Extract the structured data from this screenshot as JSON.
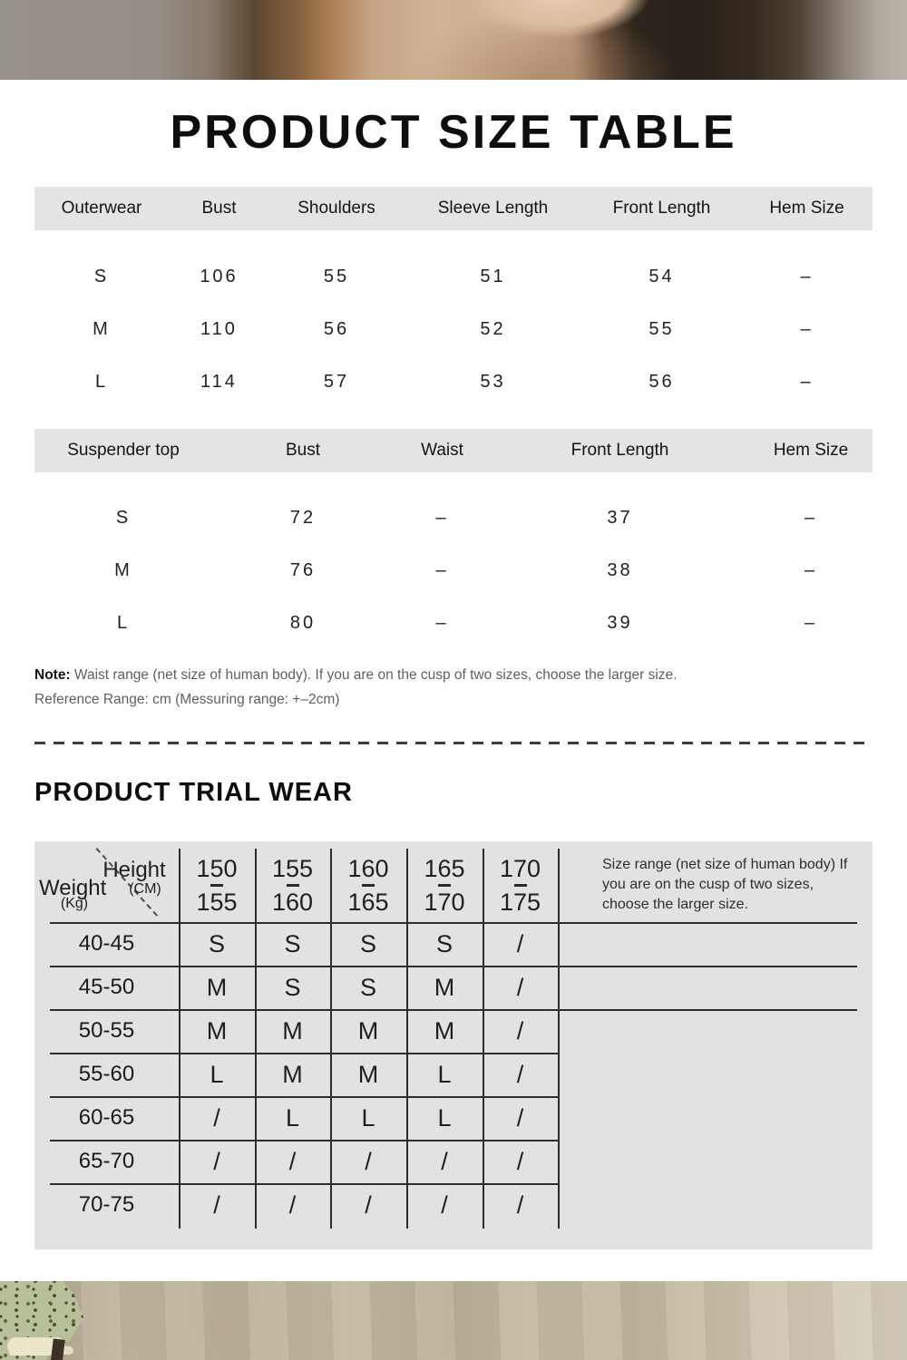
{
  "size_table": {
    "title": "PRODUCT SIZE TABLE",
    "outerwear": {
      "headers": [
        "Outerwear",
        "Bust",
        "Shoulders",
        "Sleeve Length",
        "Front Length",
        "Hem Size"
      ],
      "rows": [
        [
          "S",
          "106",
          "55",
          "51",
          "54",
          "–"
        ],
        [
          "M",
          "110",
          "56",
          "52",
          "55",
          "–"
        ],
        [
          "L",
          "114",
          "57",
          "53",
          "56",
          "–"
        ]
      ]
    },
    "suspender": {
      "headers": [
        "Suspender top",
        "Bust",
        "Waist",
        "Front Length",
        "Hem Size"
      ],
      "rows": [
        [
          "S",
          "72",
          "–",
          "37",
          "–"
        ],
        [
          "M",
          "76",
          "–",
          "38",
          "–"
        ],
        [
          "L",
          "80",
          "–",
          "39",
          "–"
        ]
      ]
    },
    "note_label": "Note:",
    "note_text": " Waist range (net size of human body). If you are on the cusp of two sizes, choose the larger size.",
    "reference_text": "Reference Range: cm (Messuring range: +–2cm)"
  },
  "trial_wear": {
    "title": "PRODUCT TRIAL WEAR",
    "corner": {
      "height_label": "Height",
      "height_unit": "(CM)",
      "weight_label": "Weight",
      "weight_unit": "(Kg)"
    },
    "height_columns": [
      {
        "from": "150",
        "to": "155"
      },
      {
        "from": "155",
        "to": "160"
      },
      {
        "from": "160",
        "to": "165"
      },
      {
        "from": "165",
        "to": "170"
      },
      {
        "from": "170",
        "to": "175"
      }
    ],
    "rows": [
      {
        "weight": "40-45",
        "cells": [
          "S",
          "S",
          "S",
          "S",
          "/"
        ]
      },
      {
        "weight": "45-50",
        "cells": [
          "M",
          "S",
          "S",
          "M",
          "/"
        ]
      },
      {
        "weight": "50-55",
        "cells": [
          "M",
          "M",
          "M",
          "M",
          "/"
        ]
      },
      {
        "weight": "55-60",
        "cells": [
          "L",
          "M",
          "M",
          "L",
          "/"
        ]
      },
      {
        "weight": "60-65",
        "cells": [
          "/",
          "L",
          "L",
          "L",
          "/"
        ]
      },
      {
        "weight": "65-70",
        "cells": [
          "/",
          "/",
          "/",
          "/",
          "/"
        ]
      },
      {
        "weight": "70-75",
        "cells": [
          "/",
          "/",
          "/",
          "/",
          "/"
        ]
      }
    ],
    "side_note": "Size range (net size of human body) If you are on the cusp of two sizes, choose the larger size."
  },
  "colors": {
    "header_band_bg": "#e4e4e4",
    "trial_panel_bg": "#e2e2e2",
    "grid_line": "#2c2c2c",
    "text_primary": "#1a1a1a",
    "text_muted": "#5f5f5f"
  }
}
